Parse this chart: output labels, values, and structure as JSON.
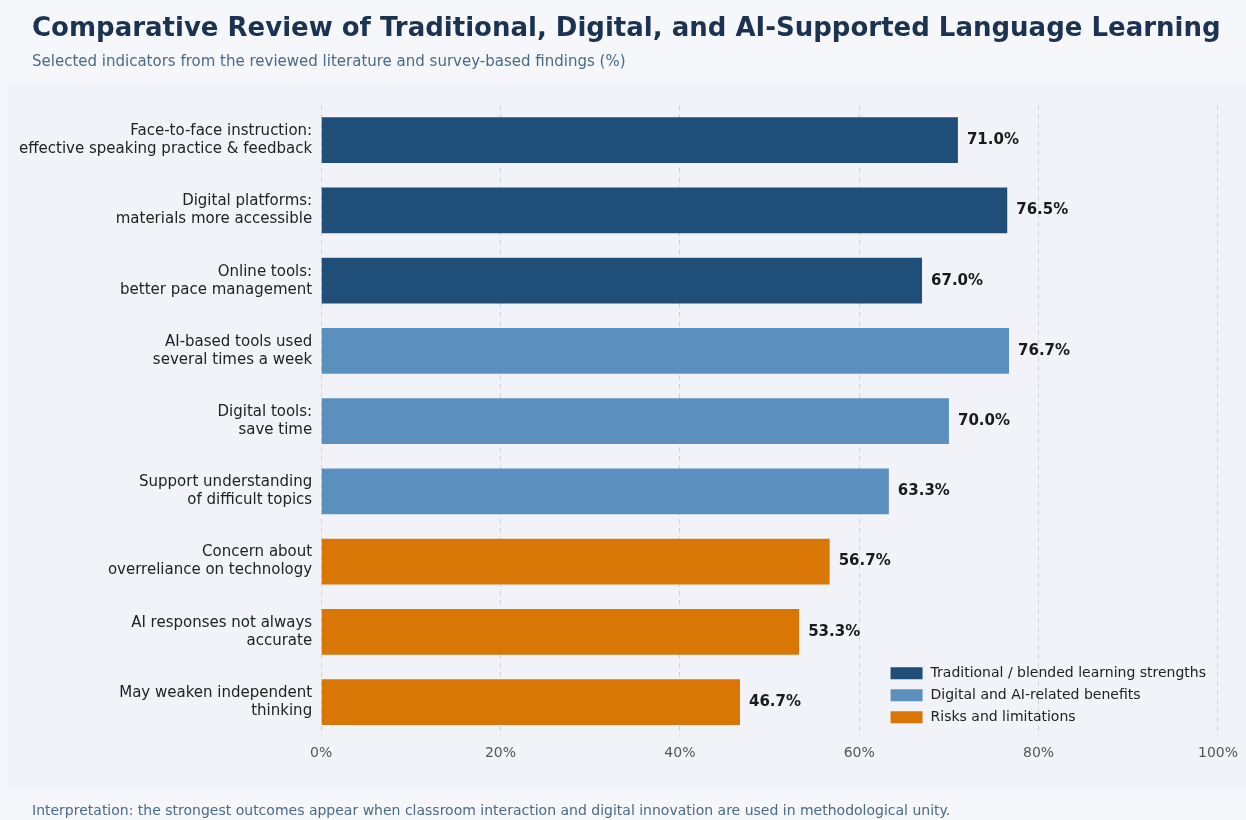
{
  "chart_data": {
    "type": "bar",
    "orientation": "horizontal",
    "title": "Comparative Review of Traditional, Digital, and AI-Supported Language Learning",
    "subtitle": "Selected indicators from the reviewed literature and survey-based findings (%)",
    "categories": [
      "Face-to-face instruction:\neffective speaking practice & feedback",
      "Digital platforms:\nmaterials more accessible",
      "Online tools:\nbetter pace management",
      "AI-based tools used\nseveral times a week",
      "Digital tools:\nsave time",
      "Support understanding\nof difficult topics",
      "Concern about\noverreliance on technology",
      "AI responses not always\naccurate",
      "May weaken independent\nthinking"
    ],
    "series": [
      {
        "name": "Traditional / blended learning strengths",
        "color": "#1f4e79",
        "values": [
          71.0,
          76.5,
          67.0,
          null,
          null,
          null,
          null,
          null,
          null
        ],
        "value_labels": [
          "71.0%",
          "76.5%",
          "67.0%",
          null,
          null,
          null,
          null,
          null,
          null
        ]
      },
      {
        "name": "Digital and AI-related benefits",
        "color": "#5b8fbd",
        "values": [
          null,
          null,
          null,
          76.7,
          70.0,
          63.3,
          null,
          null,
          null
        ],
        "value_labels": [
          null,
          null,
          null,
          "76.7%",
          "70.0%",
          "63.3%",
          null,
          null,
          null
        ]
      },
      {
        "name": "Risks and limitations",
        "color": "#d97706",
        "values": [
          null,
          null,
          null,
          null,
          null,
          null,
          56.7,
          53.3,
          46.7
        ],
        "value_labels": [
          null,
          null,
          null,
          null,
          null,
          null,
          "56.7%",
          "53.3%",
          "46.7%"
        ]
      }
    ],
    "xlim": [
      0,
      100
    ],
    "xticks": [
      {
        "value": 0,
        "label": "0%"
      },
      {
        "value": 20,
        "label": "20%"
      },
      {
        "value": 40,
        "label": "40%"
      },
      {
        "value": 60,
        "label": "60%"
      },
      {
        "value": 80,
        "label": "80%"
      },
      {
        "value": 100,
        "label": "100%"
      }
    ],
    "grid": "x",
    "legend": "bottom right",
    "annotations": [
      "Interpretation: the strongest outcomes appear when classroom interaction and digital innovation are used in methodological unity."
    ]
  }
}
